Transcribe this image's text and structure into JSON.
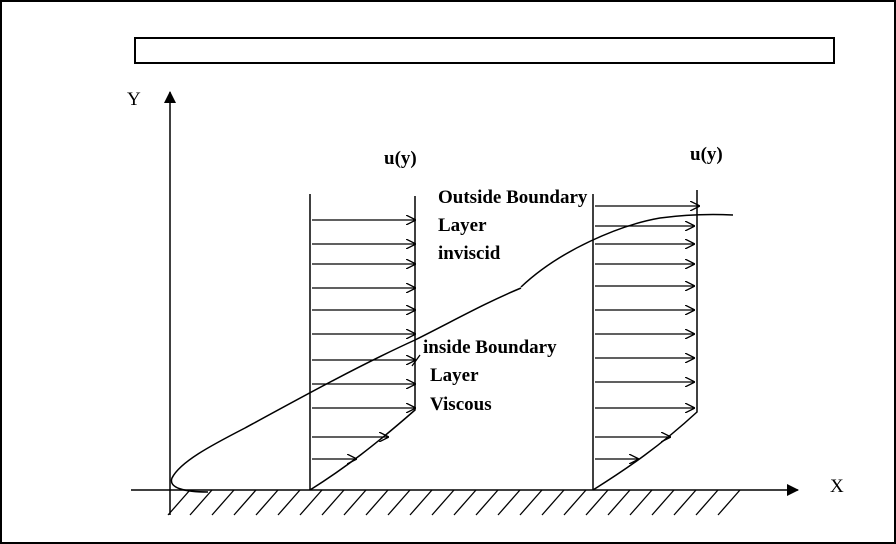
{
  "axes": {
    "y_label": "Y",
    "x_label": "X"
  },
  "profiles": [
    {
      "label": "u(y)"
    },
    {
      "label": "u(y)"
    }
  ],
  "regions": {
    "outside": {
      "line1": "Outside Boundary",
      "line2": "Layer",
      "line3": "inviscid"
    },
    "inside": {
      "line1": "inside Boundary",
      "line2": "Layer",
      "line3": "Viscous"
    }
  },
  "colors": {
    "stroke": "#000000",
    "background": "#ffffff"
  }
}
